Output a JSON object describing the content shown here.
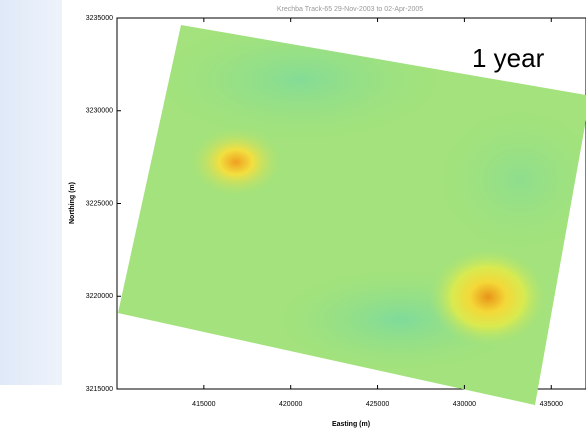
{
  "chart_data": {
    "type": "raster",
    "title": "Krechba Track-65 29-Nov-2003 to 02-Apr-2005",
    "xlabel": "Easting (m)",
    "ylabel": "Northing (m)",
    "annotation": "1 year",
    "xlim": [
      410000,
      437000
    ],
    "ylim": [
      3215000,
      3235000
    ],
    "xticks": [
      415000,
      420000,
      425000,
      430000,
      435000
    ],
    "yticks": [
      3215000,
      3220000,
      3225000,
      3230000,
      3235000
    ]
  }
}
